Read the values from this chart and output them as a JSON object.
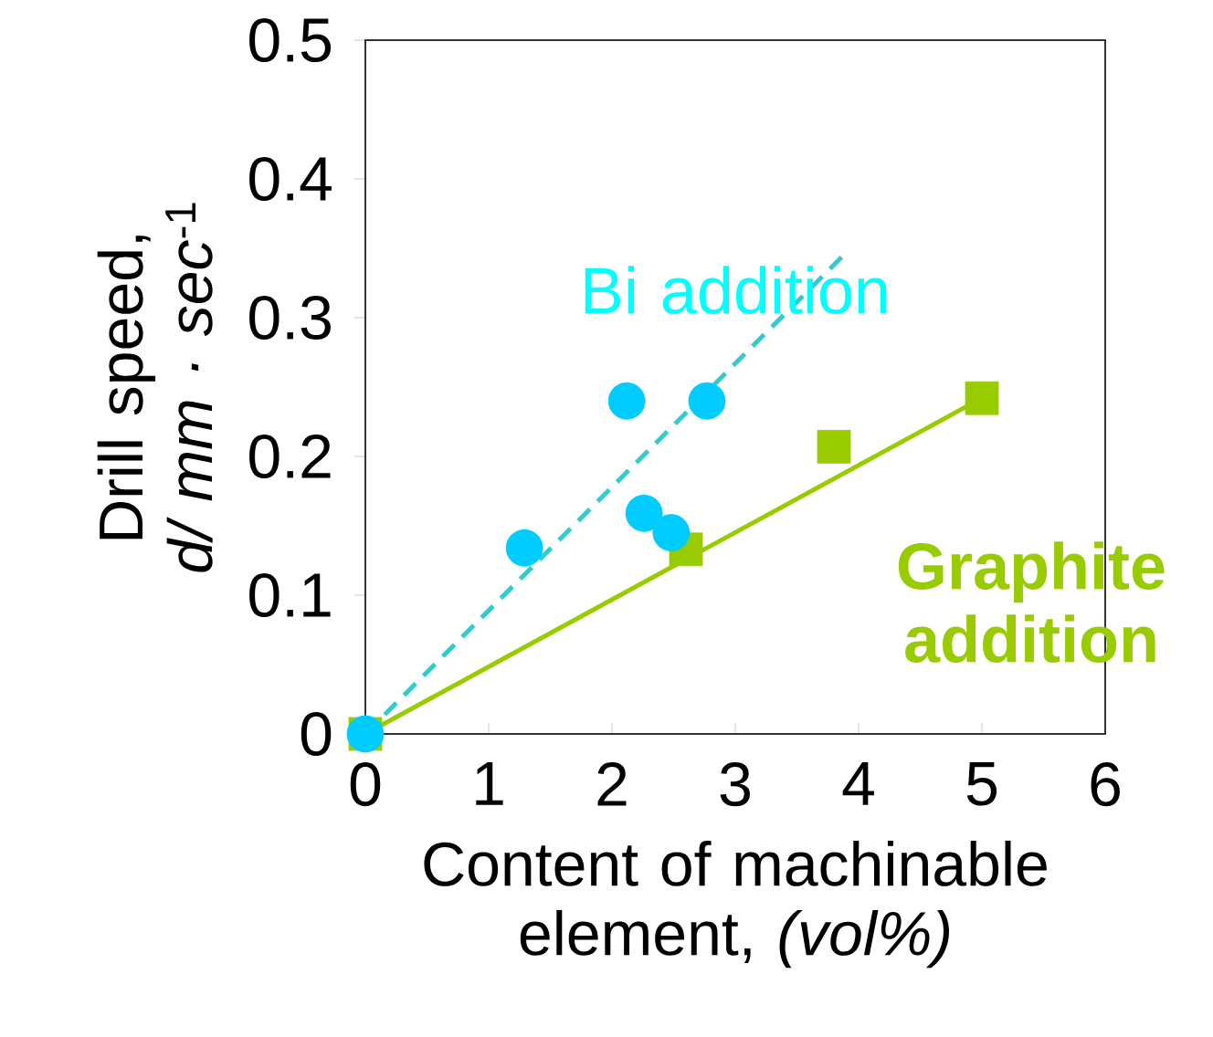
{
  "chart_data": {
    "type": "scatter",
    "xlabel": "Content of machinable element, *(vol%)*",
    "ylabel": "Drill speed, *d/ mm · sec*$^{-1}$",
    "xlim": [
      0,
      6
    ],
    "ylim": [
      0,
      0.5
    ],
    "xticks": [
      0,
      1,
      2,
      3,
      4,
      5,
      6
    ],
    "yticks": [
      0,
      0.1,
      0.2,
      0.3,
      0.4,
      0.5
    ],
    "grid": false,
    "series": [
      {
        "type": "line",
        "color": "#33cccc",
        "line_style": "dashed",
        "marker": "none",
        "x": [
          0,
          3.9
        ],
        "values": [
          0,
          0.347
        ]
      },
      {
        "type": "line",
        "color": "#99cc00",
        "line_style": "solid",
        "marker": "none",
        "x": [
          0,
          5.0
        ],
        "values": [
          0,
          0.242
        ]
      },
      {
        "color": "#99cc00",
        "marker": "square",
        "x": [
          0,
          2.6,
          3.8,
          5.0
        ],
        "values": [
          0,
          0.133,
          0.207,
          0.242
        ]
      },
      {
        "color": "#00ccff",
        "marker": "circle",
        "x": [
          0,
          1.29,
          2.12,
          2.77,
          2.26,
          2.48
        ],
        "values": [
          0,
          0.134,
          0.24,
          0.24,
          0.159,
          0.145
        ]
      }
    ],
    "annotations": [
      "Bi addition",
      "**Graphite addition**"
    ]
  }
}
